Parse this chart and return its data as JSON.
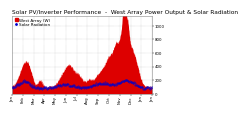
{
  "title": "Solar PV/Inverter Performance  -  West Array Power Output & Solar Radiation",
  "legend_labels": [
    "West Array (W)",
    "Solar Radiation"
  ],
  "bg_color": "#ffffff",
  "plot_bg_color": "#ffffff",
  "grid_color": "#aaaaaa",
  "red_color": "#dd0000",
  "blue_color": "#0000cc",
  "n_points": 600,
  "title_fontsize": 4.2,
  "tick_fontsize": 2.8,
  "legend_fontsize": 3.0,
  "ylim": [
    0,
    1.15
  ]
}
